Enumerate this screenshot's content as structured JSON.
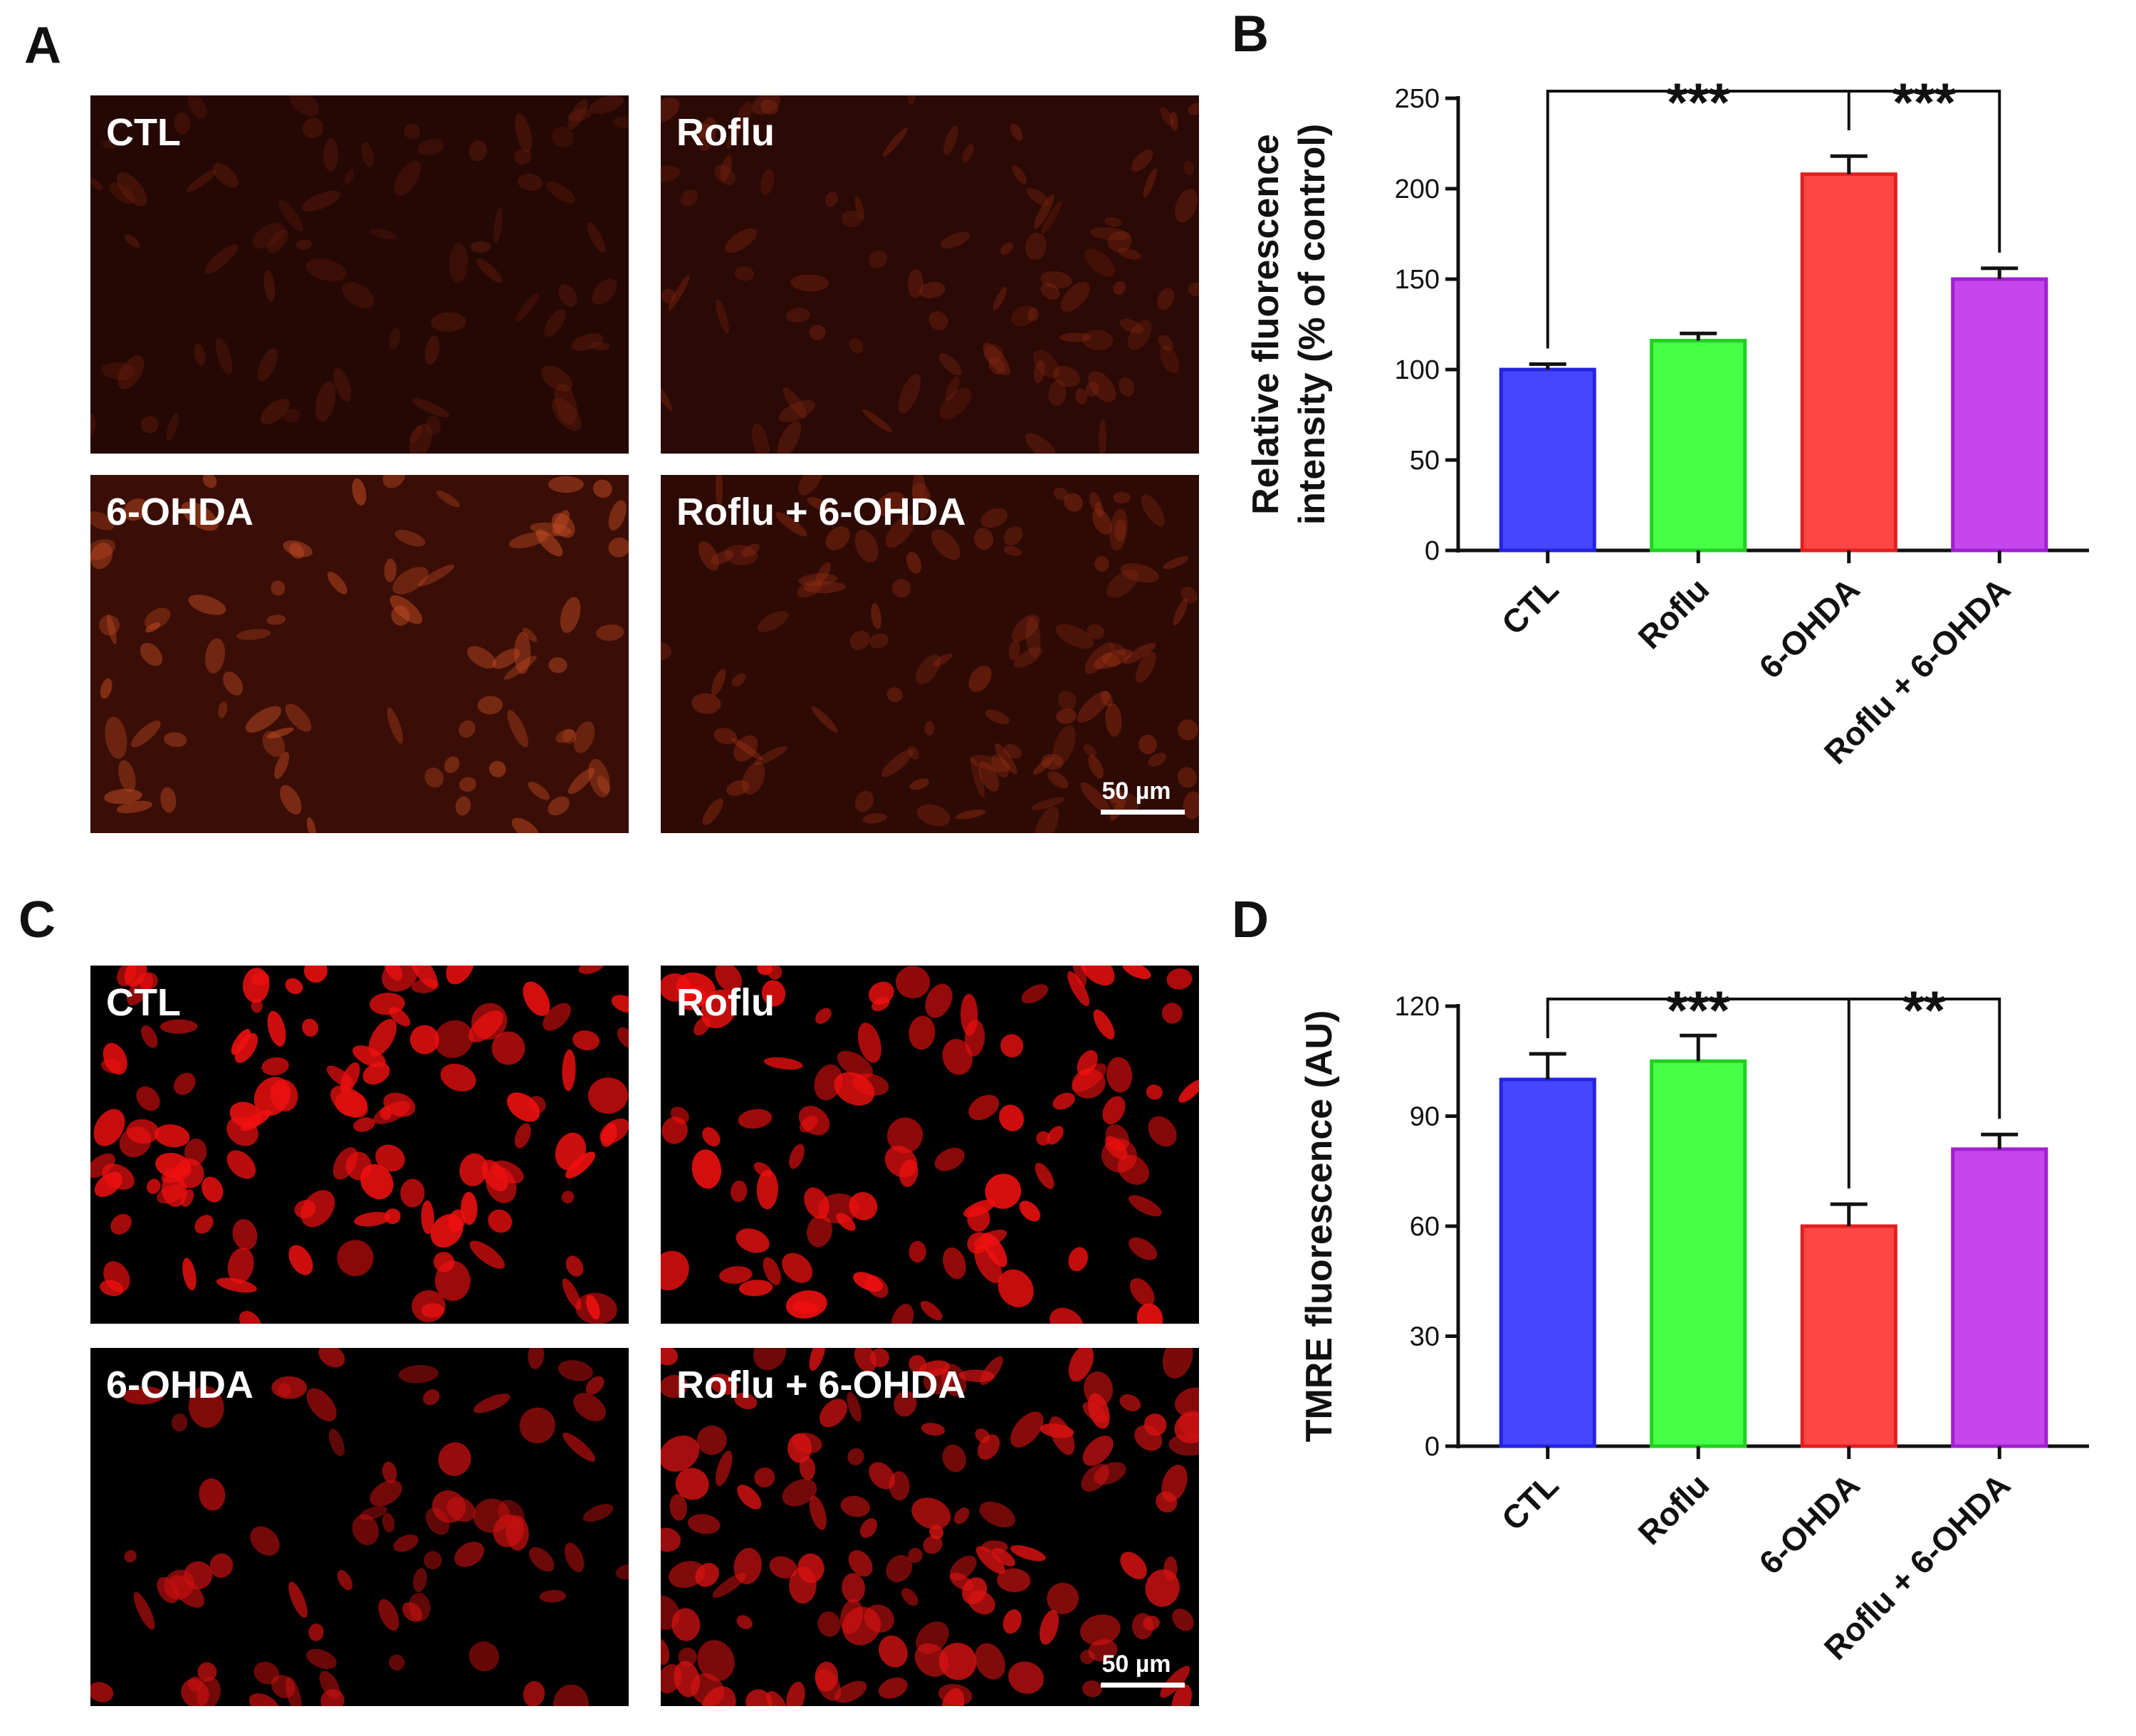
{
  "panel_labels": [
    "A",
    "B",
    "C",
    "D"
  ],
  "image_panels": [
    {
      "images": [
        "CTL",
        "Roflu",
        "6-OHDA",
        "Roflu + 6-OHDA"
      ],
      "scale_bar": "50 µm"
    },
    {
      "images": [
        "CTL",
        "Roflu",
        "6-OHDA",
        "Roflu + 6-OHDA"
      ],
      "scale_bar": "50 µm"
    }
  ],
  "chart_data": [
    {
      "type": "bar",
      "ylabel": [
        "Relative fluorescence",
        "intensity (% of control)"
      ],
      "categories": [
        "CTL",
        "Roflu",
        "6-OHDA",
        "Roflu + 6-OHDA"
      ],
      "values": [
        100,
        116,
        208,
        150
      ],
      "errors": [
        3,
        4,
        10,
        6
      ],
      "colors": [
        "#4646ff",
        "#46ff46",
        "#ff4646",
        "#c446ec"
      ],
      "edge_colors": [
        "#2424e0",
        "#20d020",
        "#e02020",
        "#a020d0"
      ],
      "ylim": [
        0,
        250
      ],
      "yticks": [
        0,
        50,
        100,
        150,
        200,
        250
      ],
      "annotations": [
        "***",
        "***"
      ]
    },
    {
      "type": "bar",
      "ylabel": [
        "TMRE fluorescence (AU)"
      ],
      "categories": [
        "CTL",
        "Roflu",
        "6-OHDA",
        "Roflu + 6-OHDA"
      ],
      "values": [
        100,
        105,
        60,
        81
      ],
      "errors": [
        7,
        7,
        6,
        4
      ],
      "colors": [
        "#4646ff",
        "#46ff46",
        "#ff4646",
        "#c446ec"
      ],
      "edge_colors": [
        "#2424e0",
        "#20d020",
        "#e02020",
        "#a020d0"
      ],
      "ylim": [
        0,
        120
      ],
      "yticks": [
        0,
        30,
        60,
        90,
        120
      ],
      "annotations": [
        "***",
        "**"
      ]
    }
  ]
}
